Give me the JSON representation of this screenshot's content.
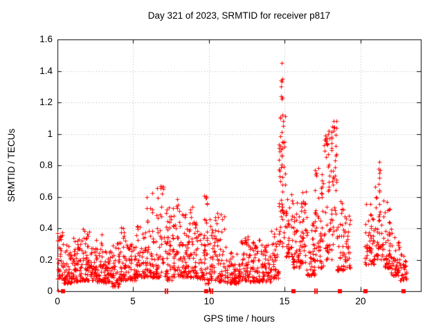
{
  "chart_data": {
    "type": "scatter",
    "title": "Day 321 of 2023, SRMTID for receiver p817",
    "xlabel": "GPS time / hours",
    "ylabel": "SRMTID / TECUs",
    "xlim": [
      0,
      24
    ],
    "ylim": [
      0,
      1.6
    ],
    "x_ticks": [
      {
        "v": 0,
        "label": "0"
      },
      {
        "v": 5,
        "label": "5"
      },
      {
        "v": 10,
        "label": "10"
      },
      {
        "v": 15,
        "label": "15"
      },
      {
        "v": 20,
        "label": "20"
      }
    ],
    "y_ticks": [
      {
        "v": 0,
        "label": "0"
      },
      {
        "v": 0.2,
        "label": "0.2"
      },
      {
        "v": 0.4,
        "label": "0.4"
      },
      {
        "v": 0.6,
        "label": "0.6"
      },
      {
        "v": 0.8,
        "label": "0.8"
      },
      {
        "v": 1,
        "label": "1"
      },
      {
        "v": 1.2,
        "label": "1.2"
      },
      {
        "v": 1.4,
        "label": "1.4"
      },
      {
        "v": 1.6,
        "label": "1.6"
      }
    ],
    "grid": {
      "on": true,
      "style": "dotted",
      "color": "#b0b0b0",
      "x_lines": [
        5,
        10,
        15,
        20
      ],
      "y_lines": [
        0.2,
        0.4,
        0.6,
        0.8,
        1.0,
        1.2,
        1.4
      ]
    },
    "marker": {
      "shape": "plus",
      "size": 7,
      "color": "#ff0000"
    },
    "border_color": "#000000",
    "legend": "none",
    "seed": 42,
    "density_segments": [
      {
        "x0": 0.0,
        "x1": 0.35,
        "ymin": 0.08,
        "ymax": 0.4,
        "n": 32,
        "skew": 1.6
      },
      {
        "x0": 0.35,
        "x1": 1.0,
        "ymin": 0.05,
        "ymax": 0.3,
        "n": 60,
        "skew": 1.9
      },
      {
        "x0": 1.0,
        "x1": 1.6,
        "ymin": 0.06,
        "ymax": 0.34,
        "n": 58,
        "skew": 1.9
      },
      {
        "x0": 1.6,
        "x1": 2.1,
        "ymin": 0.07,
        "ymax": 0.4,
        "n": 48,
        "skew": 2.0
      },
      {
        "x0": 2.1,
        "x1": 2.55,
        "ymin": 0.07,
        "ymax": 0.28,
        "n": 42,
        "skew": 1.8
      },
      {
        "x0": 2.55,
        "x1": 3.0,
        "ymin": 0.06,
        "ymax": 0.38,
        "n": 45,
        "skew": 2.0
      },
      {
        "x0": 3.0,
        "x1": 3.6,
        "ymin": 0.05,
        "ymax": 0.26,
        "n": 52,
        "skew": 1.8
      },
      {
        "x0": 3.6,
        "x1": 4.1,
        "ymin": 0.03,
        "ymax": 0.32,
        "n": 46,
        "skew": 1.8
      },
      {
        "x0": 4.1,
        "x1": 4.6,
        "ymin": 0.07,
        "ymax": 0.42,
        "n": 46,
        "skew": 2.0
      },
      {
        "x0": 4.6,
        "x1": 5.2,
        "ymin": 0.07,
        "ymax": 0.3,
        "n": 52,
        "skew": 1.8
      },
      {
        "x0": 5.2,
        "x1": 5.8,
        "ymin": 0.09,
        "ymax": 0.45,
        "n": 50,
        "skew": 2.0
      },
      {
        "x0": 5.8,
        "x1": 6.4,
        "ymin": 0.09,
        "ymax": 0.64,
        "n": 52,
        "skew": 2.2
      },
      {
        "x0": 6.4,
        "x1": 7.2,
        "ymin": 0.09,
        "ymax": 0.68,
        "n": 62,
        "skew": 2.2
      },
      {
        "x0": 7.2,
        "x1": 7.6,
        "ymin": 0.07,
        "ymax": 0.55,
        "n": 38,
        "skew": 2.1
      },
      {
        "x0": 7.6,
        "x1": 8.1,
        "ymin": 0.09,
        "ymax": 0.62,
        "n": 46,
        "skew": 2.1
      },
      {
        "x0": 8.1,
        "x1": 8.6,
        "ymin": 0.09,
        "ymax": 0.5,
        "n": 46,
        "skew": 2.0
      },
      {
        "x0": 8.6,
        "x1": 9.1,
        "ymin": 0.09,
        "ymax": 0.55,
        "n": 44,
        "skew": 2.1
      },
      {
        "x0": 9.1,
        "x1": 9.6,
        "ymin": 0.08,
        "ymax": 0.45,
        "n": 42,
        "skew": 2.0
      },
      {
        "x0": 9.6,
        "x1": 10.0,
        "ymin": 0.05,
        "ymax": 0.62,
        "n": 38,
        "skew": 2.2
      },
      {
        "x0": 10.0,
        "x1": 10.5,
        "ymin": 0.07,
        "ymax": 0.5,
        "n": 42,
        "skew": 2.1
      },
      {
        "x0": 10.5,
        "x1": 11.1,
        "ymin": 0.06,
        "ymax": 0.5,
        "n": 50,
        "skew": 2.1
      },
      {
        "x0": 11.1,
        "x1": 12.0,
        "ymin": 0.05,
        "ymax": 0.26,
        "n": 70,
        "skew": 1.8
      },
      {
        "x0": 12.0,
        "x1": 12.7,
        "ymin": 0.07,
        "ymax": 0.36,
        "n": 60,
        "skew": 2.0
      },
      {
        "x0": 12.7,
        "x1": 13.4,
        "ymin": 0.06,
        "ymax": 0.34,
        "n": 60,
        "skew": 2.0
      },
      {
        "x0": 13.4,
        "x1": 14.1,
        "ymin": 0.06,
        "ymax": 0.3,
        "n": 60,
        "skew": 1.8
      },
      {
        "x0": 14.1,
        "x1": 14.6,
        "ymin": 0.08,
        "ymax": 0.42,
        "n": 44,
        "skew": 1.8
      },
      {
        "x0": 14.6,
        "x1": 15.05,
        "ymin": 0.28,
        "ymax": 1.12,
        "n": 52,
        "skew": 1.4
      },
      {
        "x0": 15.05,
        "x1": 15.5,
        "ymin": 0.22,
        "ymax": 0.62,
        "n": 36,
        "skew": 1.5
      },
      {
        "x0": 15.5,
        "x1": 16.1,
        "ymin": 0.15,
        "ymax": 0.58,
        "n": 46,
        "skew": 1.7
      },
      {
        "x0": 16.1,
        "x1": 16.45,
        "ymin": 0.18,
        "ymax": 0.66,
        "n": 32,
        "skew": 1.6
      },
      {
        "x0": 16.45,
        "x1": 17.0,
        "ymin": 0.1,
        "ymax": 0.46,
        "n": 44,
        "skew": 1.8
      },
      {
        "x0": 17.0,
        "x1": 17.6,
        "ymin": 0.15,
        "ymax": 0.8,
        "n": 52,
        "skew": 1.8
      },
      {
        "x0": 17.6,
        "x1": 18.1,
        "ymin": 0.2,
        "ymax": 1.0,
        "n": 46,
        "skew": 1.5
      },
      {
        "x0": 18.1,
        "x1": 18.45,
        "ymin": 0.3,
        "ymax": 1.09,
        "n": 36,
        "skew": 1.1
      },
      {
        "x0": 18.45,
        "x1": 19.0,
        "ymin": 0.13,
        "ymax": 0.6,
        "n": 48,
        "skew": 1.8
      },
      {
        "x0": 19.0,
        "x1": 19.35,
        "ymin": 0.15,
        "ymax": 0.5,
        "n": 26,
        "skew": 1.8
      },
      {
        "x0": 20.3,
        "x1": 20.9,
        "ymin": 0.17,
        "ymax": 0.56,
        "n": 46,
        "skew": 1.8
      },
      {
        "x0": 20.9,
        "x1": 21.35,
        "ymin": 0.2,
        "ymax": 0.78,
        "n": 36,
        "skew": 1.4
      },
      {
        "x0": 21.35,
        "x1": 22.0,
        "ymin": 0.15,
        "ymax": 0.6,
        "n": 58,
        "skew": 1.9
      },
      {
        "x0": 22.0,
        "x1": 22.6,
        "ymin": 0.1,
        "ymax": 0.42,
        "n": 50,
        "skew": 1.8
      },
      {
        "x0": 22.6,
        "x1": 23.05,
        "ymin": 0.07,
        "ymax": 0.25,
        "n": 34,
        "skew": 1.8
      }
    ],
    "outlier_points": [
      [
        0.03,
        0.005
      ],
      [
        14.8,
        1.45
      ],
      [
        14.76,
        1.34
      ],
      [
        14.8,
        1.33
      ],
      [
        14.84,
        1.35
      ],
      [
        14.78,
        1.3
      ],
      [
        14.76,
        1.24
      ],
      [
        14.82,
        1.22
      ],
      [
        14.86,
        1.23
      ],
      [
        14.74,
        1.1
      ],
      [
        14.84,
        1.12
      ],
      [
        14.88,
        1.05
      ],
      [
        14.9,
        1.08
      ],
      [
        18.25,
        1.08
      ],
      [
        18.28,
        1.04
      ],
      [
        18.22,
        1.02
      ],
      [
        17.9,
        1.02
      ],
      [
        17.85,
        0.97
      ],
      [
        21.25,
        0.82
      ],
      [
        21.22,
        0.78
      ],
      [
        21.28,
        0.77
      ],
      [
        21.24,
        0.72
      ],
      [
        21.21,
        0.68
      ],
      [
        21.26,
        0.64
      ]
    ],
    "axis_markers": [
      {
        "x": 0.35,
        "type": "square"
      },
      {
        "x": 7.15,
        "type": "bar"
      },
      {
        "x": 7.27,
        "type": "bar"
      },
      {
        "x": 9.85,
        "type": "square"
      },
      {
        "x": 10.1,
        "type": "bar"
      },
      {
        "x": 10.22,
        "type": "bar"
      },
      {
        "x": 15.6,
        "type": "square"
      },
      {
        "x": 17.0,
        "type": "bar"
      },
      {
        "x": 17.12,
        "type": "bar"
      },
      {
        "x": 18.65,
        "type": "square"
      },
      {
        "x": 20.35,
        "type": "square"
      },
      {
        "x": 22.85,
        "type": "square"
      }
    ]
  }
}
